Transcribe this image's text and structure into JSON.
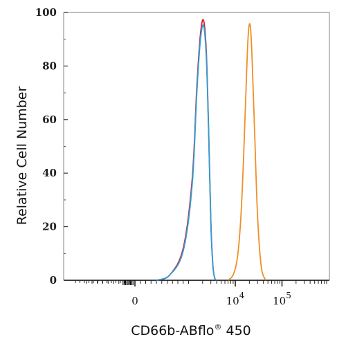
{
  "chart_data": {
    "type": "line",
    "title": "",
    "xlabel": "CD66b-ABflo",
    "xlabel_mark": "®",
    "xlabel_suffix": " 450",
    "ylabel": "Relative Cell Number",
    "x_scale": "biexponential",
    "y_ticks": [
      "0",
      "20",
      "40",
      "60",
      "80",
      "100"
    ],
    "y_tick_values": [
      0,
      20,
      40,
      60,
      80,
      100
    ],
    "ylim": [
      0,
      100
    ],
    "x_ticks": [
      {
        "base": "0",
        "exp": ""
      },
      {
        "base": "10",
        "exp": "4"
      },
      {
        "base": "10",
        "exp": "5"
      }
    ],
    "x_tick_values": [
      0,
      10000,
      100000
    ],
    "grid": false,
    "series": [
      {
        "color": "#d81e2a",
        "x": [
          400,
          650,
          900,
          1200,
          1500,
          1800,
          2100,
          2400,
          2700,
          3000,
          3300,
          3600,
          4000
        ],
        "y": [
          0,
          2,
          12,
          38,
          72,
          92,
          97,
          85,
          55,
          22,
          6,
          1,
          0
        ]
      },
      {
        "color": "#2f9ed6",
        "x": [
          400,
          650,
          900,
          1200,
          1500,
          1800,
          2100,
          2400,
          2700,
          3000,
          3300,
          3600,
          4000
        ],
        "y": [
          0,
          2,
          11,
          36,
          70,
          90,
          95,
          83,
          54,
          21,
          6,
          1,
          0
        ]
      },
      {
        "color": "#ef8f26",
        "x": [
          7000,
          9000,
          11000,
          13000,
          15000,
          17000,
          19000,
          21000,
          23000,
          26000,
          30000,
          36000,
          45000
        ],
        "y": [
          0,
          2,
          8,
          22,
          45,
          72,
          92,
          95,
          82,
          55,
          24,
          5,
          0
        ]
      }
    ]
  }
}
